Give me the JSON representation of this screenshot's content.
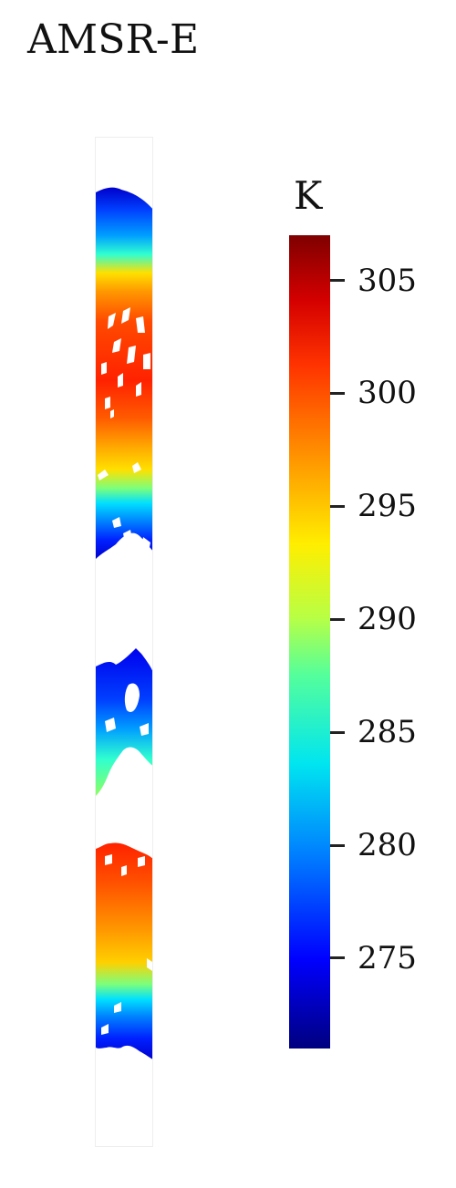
{
  "figure": {
    "title": "AMSR-E"
  },
  "map": {
    "colormap": "jet",
    "colors": {
      "deep_blue": "#0000cc",
      "blue": "#0040ff",
      "light_blue": "#0090ff",
      "cyan": "#00e0ff",
      "aqua": "#30ffd0",
      "green": "#7cff7c",
      "yellow": "#ffe000",
      "orange": "#ff9800",
      "red_orange": "#ff4a00",
      "red": "#ff2200"
    }
  },
  "colorbar": {
    "label": "K",
    "range": [
      271,
      307
    ],
    "ticks": [
      {
        "value": 305,
        "label": "305"
      },
      {
        "value": 300,
        "label": "300"
      },
      {
        "value": 295,
        "label": "295"
      },
      {
        "value": 290,
        "label": "290"
      },
      {
        "value": 285,
        "label": "285"
      },
      {
        "value": 280,
        "label": "280"
      },
      {
        "value": 275,
        "label": "275"
      }
    ]
  }
}
